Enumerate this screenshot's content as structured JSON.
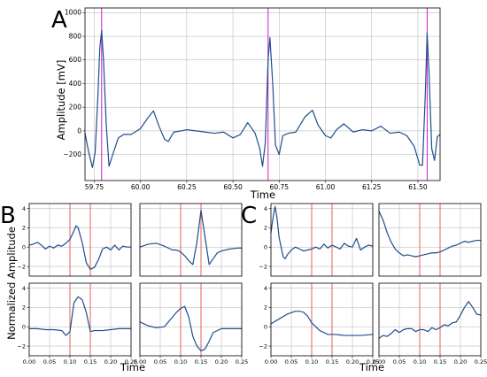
{
  "panel_labels": [
    "A",
    "B",
    "C"
  ],
  "colors": {
    "trace": "#1f4e8c",
    "peak_marker": "#cc00cc",
    "window_marker": "#e8554e",
    "grid": "#b0b0b0"
  },
  "chart_data": [
    {
      "id": "A",
      "type": "line",
      "xlabel": "Time",
      "ylabel": "Amplitude [mV]",
      "xlim": [
        59.7,
        61.62
      ],
      "ylim": [
        -420,
        1040
      ],
      "grid": true,
      "x_ticks": [
        59.75,
        60.0,
        60.25,
        60.5,
        60.75,
        61.0,
        61.25,
        61.5
      ],
      "x_tick_labels": [
        "59.75",
        "60.00",
        "60.25",
        "60.50",
        "60.75",
        "61.00",
        "61.25",
        "61.50"
      ],
      "y_ticks": [
        -200,
        0,
        200,
        400,
        600,
        800,
        1000
      ],
      "y_tick_labels": [
        "−200",
        "0",
        "200",
        "400",
        "600",
        "800",
        "1000"
      ],
      "peak_markers": [
        59.79,
        60.69,
        61.55
      ],
      "series": [
        {
          "x": [
            59.7,
            59.72,
            59.74,
            59.755,
            59.77,
            59.78,
            59.79,
            59.8,
            59.815,
            59.83,
            59.85,
            59.88,
            59.91,
            59.95,
            60.0,
            60.04,
            60.07,
            60.1,
            60.13,
            60.15,
            60.18,
            60.22,
            60.25,
            60.3,
            60.35,
            60.4,
            60.45,
            60.5,
            60.54,
            60.58,
            60.62,
            60.645,
            60.66,
            60.675,
            60.69,
            60.7,
            60.715,
            60.73,
            60.75,
            60.77,
            60.8,
            60.84,
            60.89,
            60.93,
            60.96,
            61.0,
            61.03,
            61.06,
            61.1,
            61.15,
            61.2,
            61.25,
            61.3,
            61.35,
            61.4,
            61.44,
            61.48,
            61.51,
            61.525,
            61.54,
            61.55,
            61.56,
            61.575,
            61.59,
            61.605,
            61.62
          ],
          "y": [
            -20,
            -180,
            -310,
            -180,
            300,
            700,
            850,
            600,
            50,
            -300,
            -200,
            -60,
            -30,
            -30,
            20,
            110,
            170,
            40,
            -70,
            -90,
            -10,
            0,
            10,
            0,
            -10,
            -20,
            -10,
            -60,
            -30,
            70,
            -20,
            -150,
            -300,
            -100,
            600,
            790,
            400,
            -120,
            -200,
            -40,
            -20,
            -10,
            120,
            175,
            50,
            -40,
            -60,
            10,
            60,
            -10,
            10,
            0,
            40,
            -20,
            -10,
            -40,
            -130,
            -290,
            -290,
            300,
            830,
            500,
            -150,
            -250,
            -50,
            -30
          ]
        }
      ]
    },
    {
      "id": "B",
      "type": "line",
      "xlabel": "Time",
      "ylabel": "Normalized Amplitude",
      "xlim": [
        0,
        0.25
      ],
      "ylim": [
        -3,
        4.5
      ],
      "grid": true,
      "x_ticks": [
        0,
        0.05,
        0.1,
        0.15,
        0.2,
        0.25
      ],
      "x_tick_labels": [
        "0.00",
        "0.05",
        "0.10",
        "0.15",
        "0.20",
        "0.25"
      ],
      "y_ticks": [
        -2,
        0,
        2,
        4
      ],
      "y_tick_labels": [
        "−2",
        "0",
        "2",
        "4"
      ],
      "window_markers": [
        0.1,
        0.15
      ],
      "subplots": [
        {
          "x": [
            0,
            0.01,
            0.02,
            0.03,
            0.04,
            0.05,
            0.06,
            0.07,
            0.08,
            0.09,
            0.1,
            0.11,
            0.115,
            0.12,
            0.13,
            0.14,
            0.15,
            0.16,
            0.17,
            0.18,
            0.19,
            0.2,
            0.21,
            0.22,
            0.23,
            0.24,
            0.25
          ],
          "y": [
            0.2,
            0.3,
            0.5,
            0.2,
            -0.2,
            0.1,
            -0.1,
            0.2,
            0.1,
            0.4,
            0.8,
            1.7,
            2.2,
            2.0,
            0.5,
            -1.6,
            -2.3,
            -2.1,
            -1.3,
            -0.2,
            0.0,
            -0.3,
            0.2,
            -0.3,
            0.1,
            0.0,
            0.0
          ]
        },
        {
          "x": [
            0,
            0.02,
            0.04,
            0.06,
            0.08,
            0.09,
            0.1,
            0.11,
            0.12,
            0.13,
            0.14,
            0.15,
            0.16,
            0.17,
            0.18,
            0.19,
            0.2,
            0.22,
            0.24,
            0.25
          ],
          "y": [
            0.0,
            0.3,
            0.4,
            0.1,
            -0.3,
            -0.3,
            -0.5,
            -0.9,
            -1.4,
            -1.8,
            0.5,
            3.8,
            1.0,
            -1.8,
            -1.2,
            -0.6,
            -0.4,
            -0.2,
            -0.1,
            -0.1
          ]
        },
        {
          "x": [
            0,
            0.02,
            0.04,
            0.06,
            0.08,
            0.09,
            0.1,
            0.11,
            0.12,
            0.13,
            0.14,
            0.15,
            0.16,
            0.18,
            0.2,
            0.22,
            0.25
          ],
          "y": [
            -0.2,
            -0.2,
            -0.3,
            -0.3,
            -0.4,
            -0.9,
            -0.5,
            2.5,
            3.1,
            2.8,
            1.5,
            -0.5,
            -0.4,
            -0.4,
            -0.3,
            -0.2,
            -0.2
          ]
        },
        {
          "x": [
            0,
            0.01,
            0.02,
            0.04,
            0.06,
            0.07,
            0.08,
            0.09,
            0.1,
            0.11,
            0.12,
            0.13,
            0.14,
            0.15,
            0.16,
            0.17,
            0.18,
            0.2,
            0.22,
            0.25
          ],
          "y": [
            0.5,
            0.3,
            0.1,
            -0.1,
            0.0,
            0.5,
            1.0,
            1.5,
            1.9,
            2.1,
            1.0,
            -1.0,
            -2.0,
            -2.5,
            -2.3,
            -1.5,
            -0.6,
            -0.2,
            -0.2,
            -0.2
          ]
        }
      ]
    },
    {
      "id": "C",
      "type": "line",
      "xlabel": "Time",
      "ylabel": "",
      "xlim": [
        0,
        0.25
      ],
      "ylim": [
        -3,
        4.5
      ],
      "grid": true,
      "x_ticks": [
        0,
        0.05,
        0.1,
        0.15,
        0.2,
        0.25
      ],
      "x_tick_labels": [
        "0.00",
        "0.05",
        "0.10",
        "0.15",
        "0.20",
        "0.25"
      ],
      "y_ticks": [
        -2,
        0,
        2,
        4
      ],
      "y_tick_labels": [
        "−2",
        "0",
        "2",
        "4"
      ],
      "window_markers": [
        0.1,
        0.15
      ],
      "subplots": [
        {
          "x": [
            0,
            0.005,
            0.01,
            0.015,
            0.02,
            0.03,
            0.035,
            0.04,
            0.05,
            0.06,
            0.07,
            0.08,
            0.09,
            0.1,
            0.11,
            0.12,
            0.13,
            0.14,
            0.15,
            0.16,
            0.17,
            0.18,
            0.19,
            0.2,
            0.21,
            0.22,
            0.23,
            0.24,
            0.25
          ],
          "y": [
            1.5,
            3.0,
            4.2,
            3.0,
            1.0,
            -1.0,
            -1.2,
            -0.8,
            -0.3,
            0.0,
            -0.2,
            -0.4,
            -0.3,
            -0.2,
            0.0,
            -0.2,
            0.3,
            -0.1,
            0.2,
            0.0,
            -0.2,
            0.4,
            0.1,
            0.0,
            0.9,
            -0.3,
            0.0,
            0.2,
            0.1
          ]
        },
        {
          "x": [
            0,
            0.01,
            0.02,
            0.03,
            0.04,
            0.05,
            0.06,
            0.07,
            0.08,
            0.09,
            0.1,
            0.11,
            0.12,
            0.13,
            0.14,
            0.15,
            0.16,
            0.17,
            0.18,
            0.19,
            0.2,
            0.21,
            0.22,
            0.23,
            0.24,
            0.25
          ],
          "y": [
            3.7,
            2.8,
            1.5,
            0.5,
            -0.2,
            -0.6,
            -0.9,
            -0.8,
            -0.9,
            -1.0,
            -0.9,
            -0.8,
            -0.7,
            -0.6,
            -0.6,
            -0.5,
            -0.3,
            -0.1,
            0.1,
            0.2,
            0.4,
            0.6,
            0.5,
            0.6,
            0.7,
            0.7
          ]
        },
        {
          "x": [
            0,
            0.02,
            0.04,
            0.06,
            0.07,
            0.08,
            0.09,
            0.1,
            0.12,
            0.14,
            0.16,
            0.18,
            0.2,
            0.22,
            0.25
          ],
          "y": [
            0.3,
            0.8,
            1.3,
            1.6,
            1.6,
            1.5,
            1.1,
            0.4,
            -0.4,
            -0.8,
            -0.8,
            -0.9,
            -0.9,
            -0.9,
            -0.8
          ]
        },
        {
          "x": [
            0,
            0.01,
            0.02,
            0.03,
            0.04,
            0.05,
            0.06,
            0.07,
            0.08,
            0.09,
            0.1,
            0.11,
            0.12,
            0.13,
            0.14,
            0.15,
            0.16,
            0.17,
            0.18,
            0.19,
            0.2,
            0.21,
            0.22,
            0.23,
            0.24,
            0.25
          ],
          "y": [
            -1.2,
            -0.9,
            -1.0,
            -0.7,
            -0.3,
            -0.6,
            -0.3,
            -0.2,
            -0.2,
            -0.5,
            -0.3,
            -0.3,
            -0.5,
            -0.1,
            -0.3,
            -0.1,
            0.2,
            0.1,
            0.4,
            0.5,
            1.2,
            2.0,
            2.6,
            2.0,
            1.3,
            1.2
          ]
        }
      ]
    }
  ]
}
